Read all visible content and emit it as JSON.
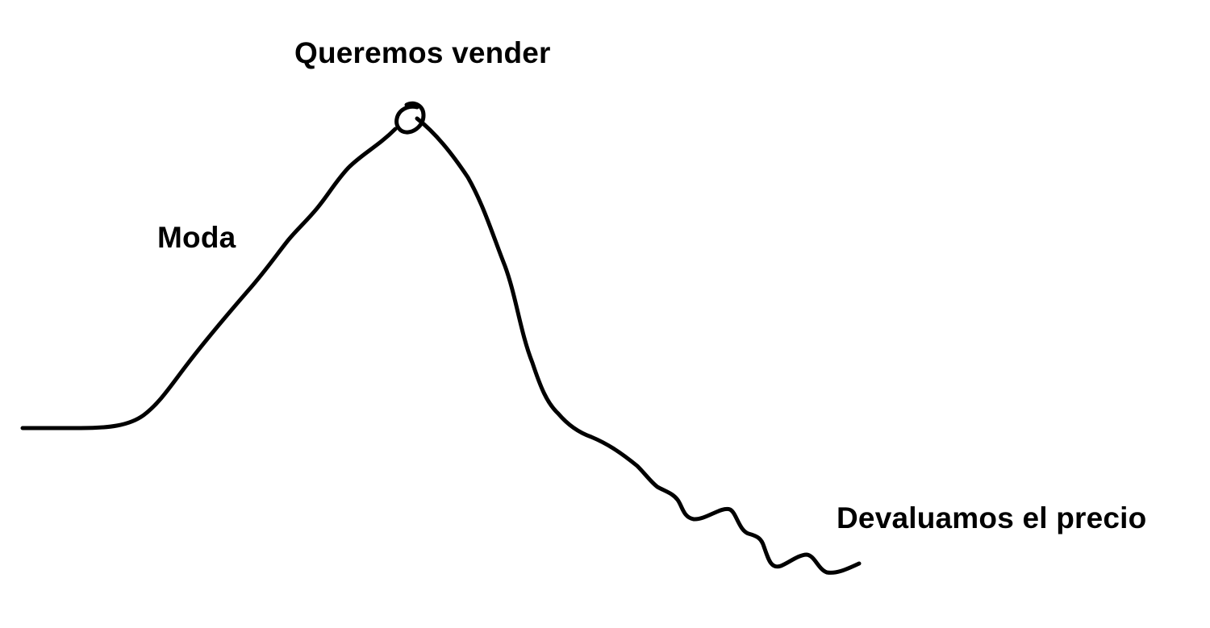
{
  "diagram": {
    "labels": {
      "peak": "Queremos vender",
      "rise": "Moda",
      "decline": "Devaluamos el precio"
    },
    "colors": {
      "stroke": "#000000",
      "background": "#ffffff"
    }
  }
}
